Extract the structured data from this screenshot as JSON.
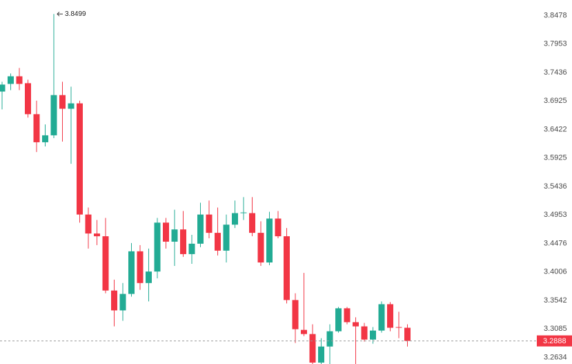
{
  "chart_data": {
    "type": "candlestick",
    "log_scale": true,
    "up_color": "#22ab94",
    "down_color": "#f23645",
    "ylim": [
      3.2524,
      3.876
    ],
    "yticks": [
      3.8478,
      3.7953,
      3.7436,
      3.6925,
      3.6422,
      3.5925,
      3.5436,
      3.4953,
      3.4476,
      3.4006,
      3.3542,
      3.3085,
      3.2634
    ],
    "open": [
      3.7087,
      3.7224,
      3.7361,
      3.7237,
      3.6685,
      3.6192,
      3.6313,
      3.7024,
      3.6781,
      3.6877,
      3.4953,
      3.4635,
      3.4589,
      3.3696,
      3.3375,
      3.3641,
      3.4339,
      3.3818,
      3.4006,
      3.4817,
      3.4499,
      3.4703,
      3.4293,
      3.4465,
      3.4953,
      3.4646,
      3.435,
      3.4783,
      3.4977,
      3.4977,
      3.4646,
      3.4155,
      3.4885,
      3.4589,
      3.3542,
      3.3063,
      3.2997,
      3.2546,
      3.2799,
      3.3041,
      3.3409,
      3.3186,
      3.3119,
      3.2909,
      3.3052,
      3.3475,
      3.3108,
      3.3097
    ],
    "high": [
      3.7262,
      3.7411,
      3.7511,
      3.7299,
      3.6925,
      3.6505,
      3.8499,
      3.7262,
      3.7174,
      3.6925,
      3.5071,
      3.4862,
      3.4896,
      3.3873,
      3.3818,
      3.4476,
      3.4442,
      3.4384,
      3.4896,
      3.4896,
      3.5035,
      3.5012,
      3.4612,
      3.5153,
      3.5189,
      3.5071,
      3.4953,
      3.5189,
      3.5248,
      3.5248,
      3.4839,
      3.5,
      3.5012,
      3.4726,
      3.3652,
      3.3984,
      3.3152,
      3.2931,
      3.3152,
      3.3431,
      3.3431,
      3.3264,
      3.3175,
      3.3108,
      3.352,
      3.3509,
      3.3353,
      3.3152
    ],
    "low": [
      3.6769,
      3.7112,
      3.7112,
      3.6625,
      3.6022,
      3.6119,
      3.6264,
      3.6204,
      3.5818,
      3.4817,
      3.4384,
      3.4442,
      3.3652,
      3.3119,
      3.3208,
      3.3597,
      3.3707,
      3.352,
      3.3895,
      3.4384,
      3.4098,
      3.4247,
      3.4132,
      3.4407,
      3.4555,
      3.427,
      3.4155,
      3.4726,
      3.4862,
      3.4589,
      3.4098,
      3.4109,
      3.4555,
      3.3487,
      3.2854,
      3.2964,
      3.2524,
      3.2524,
      3.2524,
      3.3019,
      3.3152,
      3.2524,
      3.2876,
      3.2843,
      3.3019,
      3.3041,
      3.2931,
      3.2799
    ],
    "close": [
      3.7212,
      3.7361,
      3.7224,
      3.6685,
      3.6192,
      3.6313,
      3.7024,
      3.6781,
      3.6877,
      3.4953,
      3.4635,
      3.4589,
      3.3696,
      3.3375,
      3.3641,
      3.4339,
      3.3818,
      3.4006,
      3.4817,
      3.4499,
      3.4703,
      3.4293,
      3.4465,
      3.4953,
      3.4646,
      3.435,
      3.4783,
      3.4977,
      3.4988,
      3.4646,
      3.4155,
      3.4885,
      3.4589,
      3.3542,
      3.3074,
      3.2997,
      3.2546,
      3.2799,
      3.3041,
      3.3409,
      3.3186,
      3.3119,
      3.2909,
      3.3052,
      3.3475,
      3.3097,
      3.3097,
      3.2888
    ]
  }
}
